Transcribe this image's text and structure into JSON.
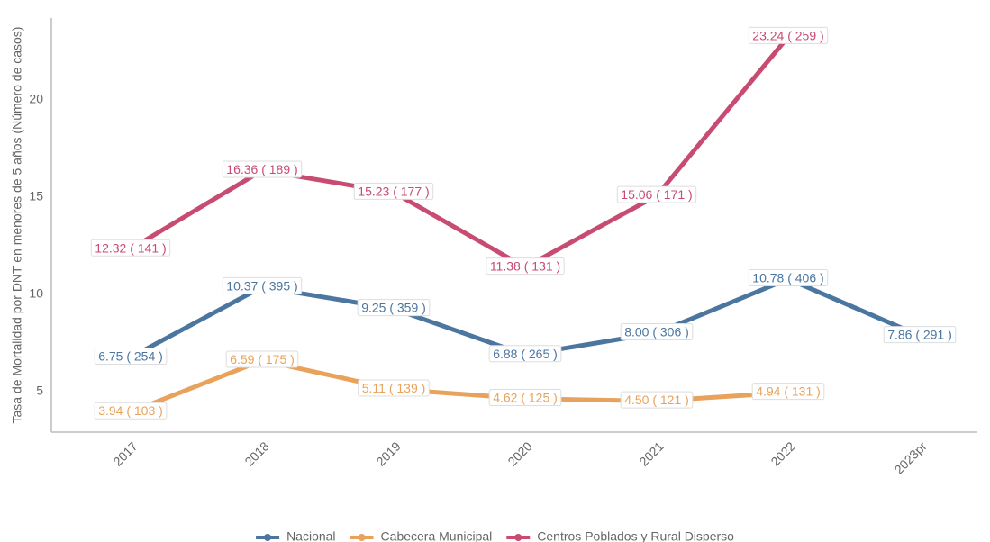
{
  "chart_data": {
    "type": "line",
    "y_label": "Tasa de Mortalidad por DNT en menores de 5 años (Número de casos)",
    "categories": [
      "2017",
      "2018",
      "2019",
      "2020",
      "2021",
      "2022",
      "2023pr"
    ],
    "series": [
      {
        "name": "Nacional",
        "color": "#4b76a0",
        "values": [
          6.75,
          10.37,
          9.25,
          6.88,
          8.0,
          10.78,
          7.86
        ],
        "value_labels": [
          "6.75 ( 254 )",
          "10.37 ( 395 )",
          "9.25 ( 359 )",
          "6.88 ( 265 )",
          "8.00 ( 306 )",
          "10.78 ( 406 )",
          "7.86 ( 291 )"
        ]
      },
      {
        "name": "Cabecera Municipal",
        "color": "#e9a25b",
        "values": [
          3.94,
          6.59,
          5.11,
          4.62,
          4.5,
          4.94,
          null
        ],
        "value_labels": [
          "3.94 ( 103 )",
          "6.59 ( 175 )",
          "5.11 ( 139 )",
          "4.62 ( 125 )",
          "4.50 ( 121 )",
          "4.94 ( 131 )",
          null
        ]
      },
      {
        "name": "Centros Poblados y Rural Disperso",
        "color": "#c84b72",
        "values": [
          12.32,
          16.36,
          15.23,
          11.38,
          15.06,
          23.24,
          null
        ],
        "value_labels": [
          "12.32 ( 141 )",
          "16.36 ( 189 )",
          "15.23 ( 177 )",
          "11.38 ( 131 )",
          "15.06 ( 171 )",
          "23.24 ( 259 )",
          null
        ]
      }
    ],
    "ylim": [
      2.9,
      24.2
    ],
    "yticks": [
      5,
      10,
      15,
      20
    ],
    "grid": false,
    "legend": "bottom"
  }
}
